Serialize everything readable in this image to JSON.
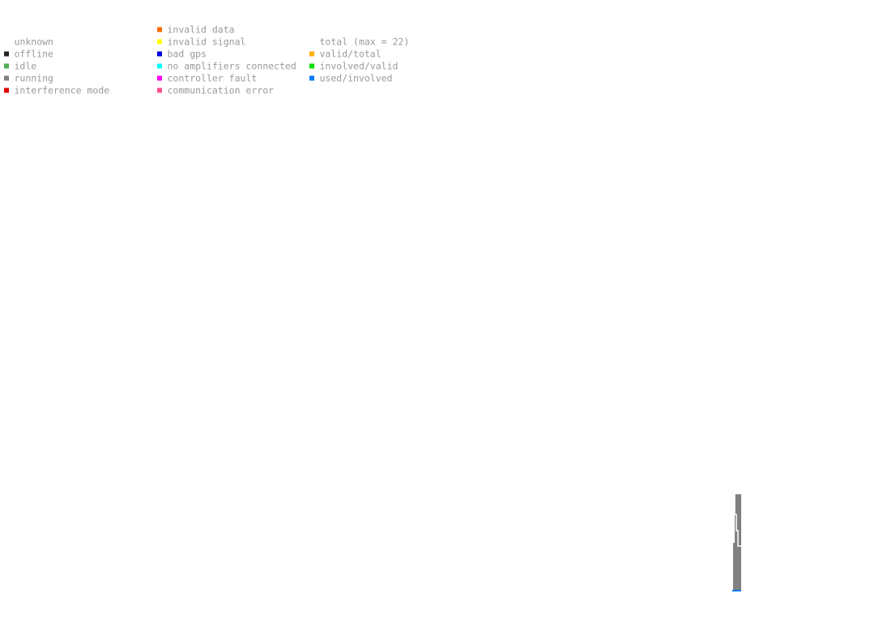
{
  "legend": {
    "columns": [
      {
        "items": [
          {
            "label": "unknown",
            "color": "#ffffff"
          },
          {
            "label": "offline",
            "color": "#222222"
          },
          {
            "label": "idle",
            "color": "#4caf50"
          },
          {
            "label": "running",
            "color": "#808080"
          },
          {
            "label": "interference mode",
            "color": "#e00000"
          }
        ]
      },
      {
        "items": [
          {
            "label": "invalid data",
            "color": "#ff6a00"
          },
          {
            "label": "invalid signal",
            "color": "#ffff00"
          },
          {
            "label": "bad gps",
            "color": "#0000e0"
          },
          {
            "label": "no amplifiers connected",
            "color": "#00ffff"
          },
          {
            "label": "controller fault",
            "color": "#ff00ff"
          },
          {
            "label": "communication error",
            "color": "#ff4f8f"
          }
        ]
      },
      {
        "items": [
          {
            "label": "total (max = 22)",
            "color": "#ffffff"
          },
          {
            "label": "valid/total",
            "color": "#ffb000"
          },
          {
            "label": "involved/valid",
            "color": "#00e000"
          },
          {
            "label": "used/involved",
            "color": "#0078ff"
          }
        ]
      }
    ]
  }
}
